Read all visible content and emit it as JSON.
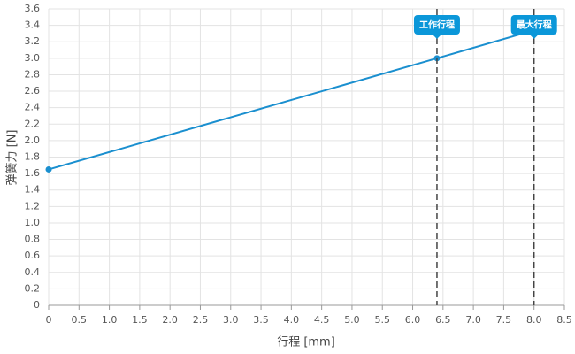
{
  "chart_data": {
    "type": "line",
    "x_label": "行程 [mm]",
    "y_label": "弹簧力 [N]",
    "series": [
      {
        "x": [
          0,
          6.4,
          8
        ],
        "values": [
          1.65,
          3.0,
          3.34
        ],
        "color": "#1a8fcf"
      }
    ],
    "annotations": [
      {
        "x": 6.4,
        "label": "工作行程"
      },
      {
        "x": 8,
        "label": "最大行程"
      }
    ],
    "annotation_color": "#0b97d9",
    "xlim": [
      0,
      8.5
    ],
    "xticks": [
      0,
      0.5,
      {
        "value": 1,
        "label": "1.0"
      },
      1.5,
      {
        "value": 2,
        "label": "2.0"
      },
      2.5,
      {
        "value": 3,
        "label": "3.0"
      },
      3.5,
      {
        "value": 4,
        "label": "4.0"
      },
      4.5,
      {
        "value": 5,
        "label": "5.0"
      },
      5.5,
      {
        "value": 6,
        "label": "6.0"
      },
      6.5,
      {
        "value": 7,
        "label": "7.0"
      },
      7.5,
      {
        "value": 8,
        "label": "8.0"
      },
      8.5
    ],
    "ylim": [
      0,
      3.6
    ],
    "yticks": [
      0,
      0.2,
      0.4,
      0.6,
      0.8,
      {
        "value": 1,
        "label": "1.0"
      },
      1.2,
      1.4,
      1.6,
      1.8,
      {
        "value": 2,
        "label": "2.0"
      },
      2.2,
      2.4,
      2.6,
      2.8,
      {
        "value": 3,
        "label": "3.0"
      },
      3.2,
      3.4,
      3.6
    ],
    "grid": true
  }
}
